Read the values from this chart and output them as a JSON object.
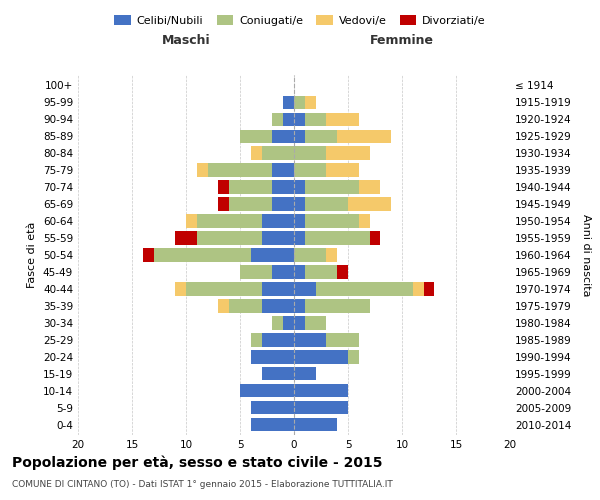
{
  "age_groups": [
    "0-4",
    "5-9",
    "10-14",
    "15-19",
    "20-24",
    "25-29",
    "30-34",
    "35-39",
    "40-44",
    "45-49",
    "50-54",
    "55-59",
    "60-64",
    "65-69",
    "70-74",
    "75-79",
    "80-84",
    "85-89",
    "90-94",
    "95-99",
    "100+"
  ],
  "birth_years": [
    "2010-2014",
    "2005-2009",
    "2000-2004",
    "1995-1999",
    "1990-1994",
    "1985-1989",
    "1980-1984",
    "1975-1979",
    "1970-1974",
    "1965-1969",
    "1960-1964",
    "1955-1959",
    "1950-1954",
    "1945-1949",
    "1940-1944",
    "1935-1939",
    "1930-1934",
    "1925-1929",
    "1920-1924",
    "1915-1919",
    "≤ 1914"
  ],
  "males": {
    "celibi": [
      4,
      4,
      5,
      3,
      4,
      3,
      1,
      3,
      3,
      2,
      4,
      3,
      3,
      2,
      2,
      2,
      0,
      2,
      1,
      1,
      0
    ],
    "coniugati": [
      0,
      0,
      0,
      0,
      0,
      1,
      1,
      3,
      7,
      3,
      9,
      6,
      6,
      4,
      4,
      6,
      3,
      3,
      1,
      0,
      0
    ],
    "vedovi": [
      0,
      0,
      0,
      0,
      0,
      0,
      0,
      1,
      1,
      0,
      0,
      0,
      1,
      0,
      0,
      1,
      1,
      0,
      0,
      0,
      0
    ],
    "divorziati": [
      0,
      0,
      0,
      0,
      0,
      0,
      0,
      0,
      0,
      0,
      1,
      2,
      0,
      1,
      1,
      0,
      0,
      0,
      0,
      0,
      0
    ]
  },
  "females": {
    "nubili": [
      4,
      5,
      5,
      2,
      5,
      3,
      1,
      1,
      2,
      1,
      0,
      1,
      1,
      1,
      1,
      0,
      0,
      1,
      1,
      0,
      0
    ],
    "coniugate": [
      0,
      0,
      0,
      0,
      1,
      3,
      2,
      6,
      9,
      3,
      3,
      6,
      5,
      4,
      5,
      3,
      3,
      3,
      2,
      1,
      0
    ],
    "vedove": [
      0,
      0,
      0,
      0,
      0,
      0,
      0,
      0,
      1,
      0,
      1,
      0,
      1,
      4,
      2,
      3,
      4,
      5,
      3,
      1,
      0
    ],
    "divorziate": [
      0,
      0,
      0,
      0,
      0,
      0,
      0,
      0,
      1,
      1,
      0,
      1,
      0,
      0,
      0,
      0,
      0,
      0,
      0,
      0,
      0
    ]
  },
  "colors": {
    "celibi_nubili": "#4472c4",
    "coniugati_e": "#aec483",
    "vedovi_e": "#f5c96a",
    "divorziati_e": "#c00000"
  },
  "xlim": [
    -20,
    20
  ],
  "xticks": [
    -20,
    -15,
    -10,
    -5,
    0,
    5,
    10,
    15,
    20
  ],
  "xtick_labels": [
    "20",
    "15",
    "10",
    "5",
    "0",
    "5",
    "10",
    "15",
    "20"
  ],
  "title": "Popolazione per età, sesso e stato civile - 2015",
  "subtitle": "COMUNE DI CINTANO (TO) - Dati ISTAT 1° gennaio 2015 - Elaborazione TUTTITALIA.IT",
  "ylabel_left": "Fasce di età",
  "ylabel_right": "Anni di nascita",
  "label_maschi": "Maschi",
  "label_femmine": "Femmine",
  "legend_labels": [
    "Celibi/Nubili",
    "Coniugati/e",
    "Vedovi/e",
    "Divorziati/e"
  ],
  "background_color": "#ffffff",
  "grid_color": "#c8c8c8"
}
